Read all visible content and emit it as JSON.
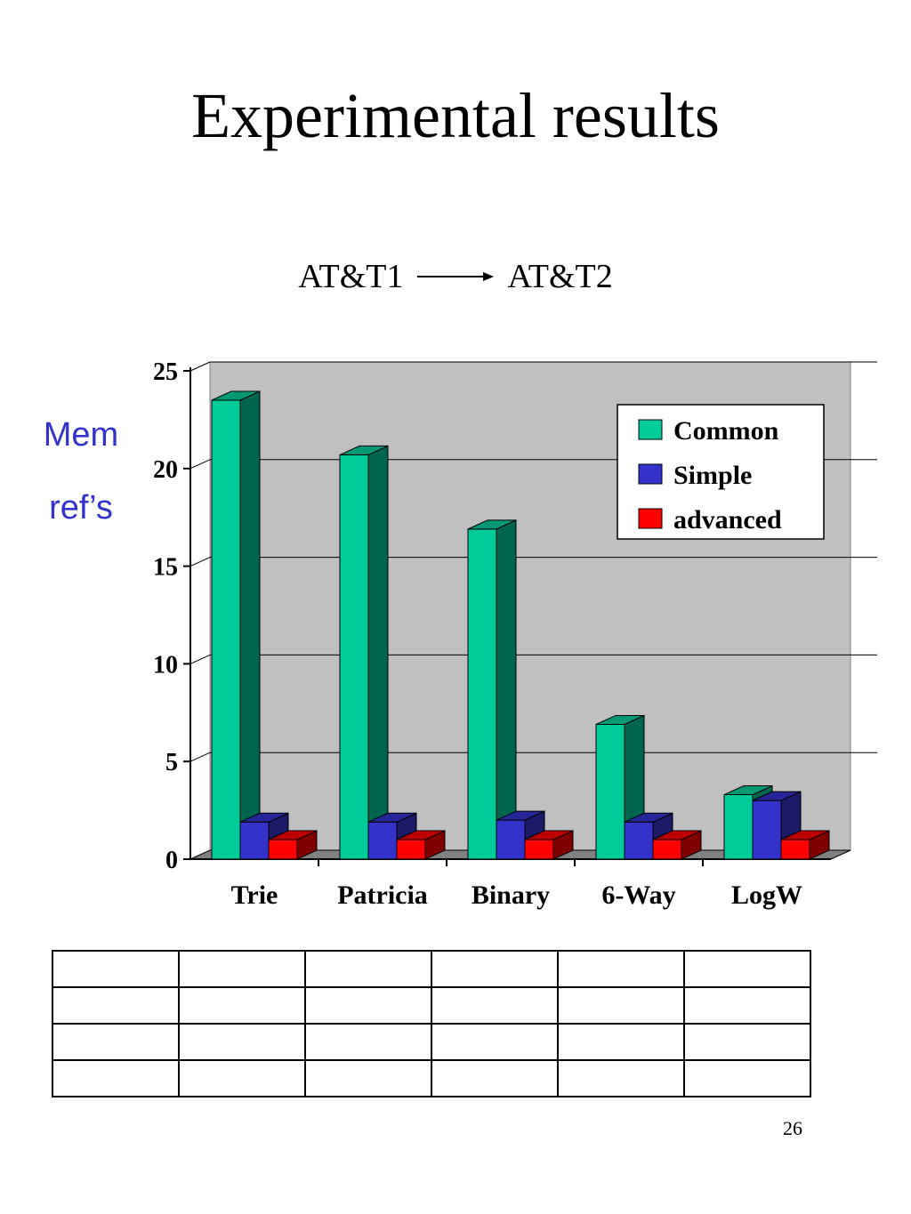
{
  "slide": {
    "title": "Experimental results",
    "subtitle_left": "AT&T1",
    "subtitle_right": "AT&T2",
    "ylabel_line1": "Mem",
    "ylabel_line2": "ref’s",
    "page_number": "26"
  },
  "chart_data": {
    "type": "bar",
    "categories": [
      "Trie",
      "Patricia",
      "Binary",
      "6-Way",
      "LogW"
    ],
    "series": [
      {
        "name": "Common",
        "values": [
          23.5,
          20.7,
          16.9,
          6.9,
          3.3
        ],
        "color": "#00cc99"
      },
      {
        "name": "Simple",
        "values": [
          1.9,
          1.9,
          2.0,
          1.9,
          3.0
        ],
        "color": "#3333cc"
      },
      {
        "name": "advanced",
        "values": [
          1.0,
          1.0,
          1.0,
          1.0,
          1.0
        ],
        "color": "#ff0000"
      }
    ],
    "ylim": [
      0,
      25
    ],
    "yticks": [
      "0",
      "5",
      "10",
      "15",
      "20",
      "25"
    ],
    "grid": true,
    "three_d": true,
    "plot_background": "#c0c0c0",
    "legend_position": "top-right"
  },
  "table": {
    "rows": [
      [
        "",
        "",
        "",
        "",
        "",
        ""
      ],
      [
        "",
        "",
        "",
        "",
        "",
        ""
      ],
      [
        "",
        "",
        "",
        "",
        "",
        ""
      ],
      [
        "",
        "",
        "",
        "",
        "",
        ""
      ]
    ]
  }
}
